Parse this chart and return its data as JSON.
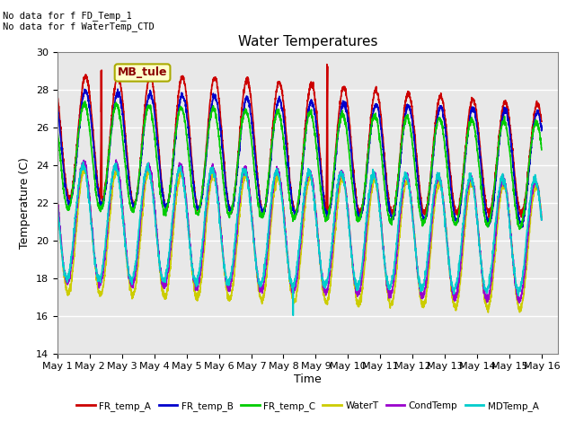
{
  "title": "Water Temperatures",
  "xlabel": "Time",
  "ylabel": "Temperature (C)",
  "ylim": [
    14,
    30
  ],
  "xlim_days": 15.5,
  "bg_color": "#e8e8e8",
  "annotations": [
    "No data for f FD_Temp_1",
    "No data for f WaterTemp_CTD"
  ],
  "mb_tule_label": "MB_tule",
  "series_colors": [
    "#cc0000",
    "#0000cc",
    "#00cc00",
    "#cccc00",
    "#9900cc",
    "#00cccc"
  ],
  "series_names": [
    "FR_temp_A",
    "FR_temp_B",
    "FR_temp_C",
    "WaterT",
    "CondTemp",
    "MDTemp_A"
  ],
  "tick_days": [
    0,
    1,
    2,
    3,
    4,
    5,
    6,
    7,
    8,
    9,
    10,
    11,
    12,
    13,
    14,
    15
  ],
  "tick_labels": [
    "May 1",
    "May 2",
    "May 3",
    "May 4",
    "May 5",
    "May 6",
    "May 7",
    "May 8",
    "May 9",
    "May 10",
    "May 11",
    "May 12",
    "May 13",
    "May 14",
    "May 15",
    "May 16"
  ],
  "lw": 1.2
}
